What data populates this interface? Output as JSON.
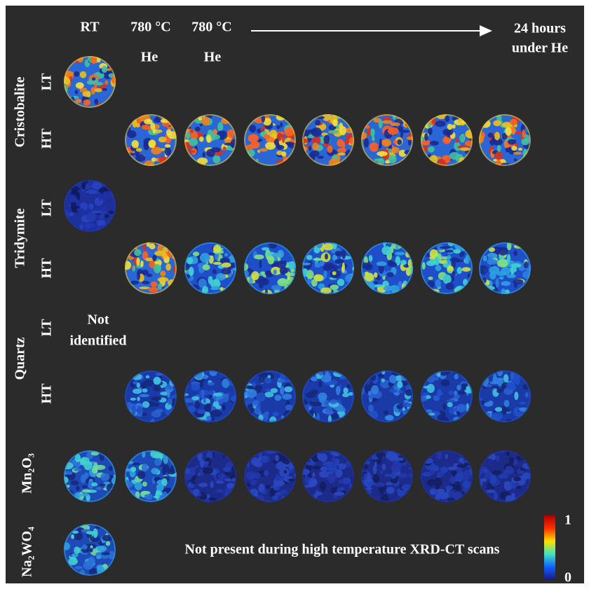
{
  "columns": {
    "headers": [
      "RT",
      "780 °C",
      "780 °C"
    ],
    "subheaders": [
      "He",
      "He"
    ],
    "end_label": [
      "24 hours",
      "under He"
    ]
  },
  "rows": [
    {
      "phase": "Cristobalite",
      "sublabels": [
        "LT",
        "HT"
      ]
    },
    {
      "phase": "Tridymite",
      "sublabels": [
        "LT",
        "HT"
      ]
    },
    {
      "phase": "Quartz",
      "sublabels": [
        "LT",
        "HT"
      ]
    },
    {
      "phase": "Mn₂O₃"
    },
    {
      "phase": "Na₂WO₄"
    }
  ],
  "notes": {
    "not_identified": [
      "Not",
      "identified"
    ],
    "not_present": "Not present during high temperature XRD-CT scans"
  },
  "colorbar": {
    "max": 1,
    "min": 0
  }
}
